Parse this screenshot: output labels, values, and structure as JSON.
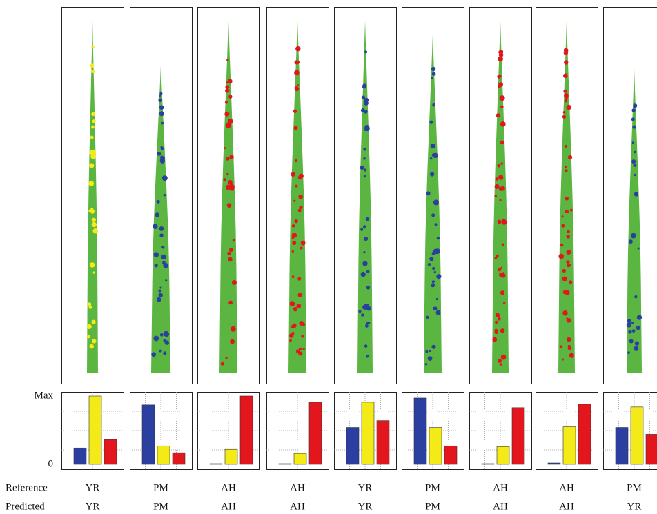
{
  "row_labels": [
    "Reference",
    "Predicted"
  ],
  "chart_data": [
    {
      "type": "bar",
      "categories": [
        null,
        null,
        null
      ],
      "values": [
        24,
        100,
        36
      ],
      "colors": [
        "#2b3fa0",
        "#f3ea17",
        "#e3161d"
      ],
      "ylim": [
        0,
        100
      ],
      "yticks": [
        0,
        {
          "value": 100,
          "label": "Max"
        }
      ],
      "grid": true,
      "reference": "YR",
      "predicted": "YR"
    },
    {
      "type": "bar",
      "categories": [
        null,
        null,
        null
      ],
      "values": [
        87,
        27,
        17
      ],
      "colors": [
        "#2b3fa0",
        "#f3ea17",
        "#e3161d"
      ],
      "ylim": [
        0,
        100
      ],
      "grid": true,
      "reference": "PM",
      "predicted": "PM"
    },
    {
      "type": "bar",
      "categories": [
        null,
        null,
        null
      ],
      "values": [
        1,
        22,
        100
      ],
      "colors": [
        "#2b3fa0",
        "#f3ea17",
        "#e3161d"
      ],
      "ylim": [
        0,
        100
      ],
      "grid": true,
      "reference": "AH",
      "predicted": "AH"
    },
    {
      "type": "bar",
      "categories": [
        null,
        null,
        null
      ],
      "values": [
        1,
        16,
        91
      ],
      "colors": [
        "#2b3fa0",
        "#f3ea17",
        "#e3161d"
      ],
      "ylim": [
        0,
        100
      ],
      "grid": true,
      "reference": "AH",
      "predicted": "AH"
    },
    {
      "type": "bar",
      "categories": [
        null,
        null,
        null
      ],
      "values": [
        54,
        91,
        64
      ],
      "colors": [
        "#2b3fa0",
        "#f3ea17",
        "#e3161d"
      ],
      "ylim": [
        0,
        100
      ],
      "grid": true,
      "reference": "YR",
      "predicted": "YR"
    },
    {
      "type": "bar",
      "categories": [
        null,
        null,
        null
      ],
      "values": [
        97,
        54,
        27
      ],
      "colors": [
        "#2b3fa0",
        "#f3ea17",
        "#e3161d"
      ],
      "ylim": [
        0,
        100
      ],
      "grid": true,
      "reference": "PM",
      "predicted": "PM"
    },
    {
      "type": "bar",
      "categories": [
        null,
        null,
        null
      ],
      "values": [
        1,
        26,
        83
      ],
      "colors": [
        "#2b3fa0",
        "#f3ea17",
        "#e3161d"
      ],
      "ylim": [
        0,
        100
      ],
      "grid": true,
      "reference": "AH",
      "predicted": "AH"
    },
    {
      "type": "bar",
      "categories": [
        null,
        null,
        null
      ],
      "values": [
        2,
        55,
        88
      ],
      "colors": [
        "#2b3fa0",
        "#f3ea17",
        "#e3161d"
      ],
      "ylim": [
        0,
        100
      ],
      "grid": true,
      "reference": "AH",
      "predicted": "AH"
    },
    {
      "type": "bar",
      "categories": [
        null,
        null,
        null
      ],
      "values": [
        54,
        84,
        44
      ],
      "colors": [
        "#2b3fa0",
        "#f3ea17",
        "#e3161d"
      ],
      "ylim": [
        0,
        100
      ],
      "grid": true,
      "reference": "PM",
      "predicted": "YR"
    }
  ]
}
